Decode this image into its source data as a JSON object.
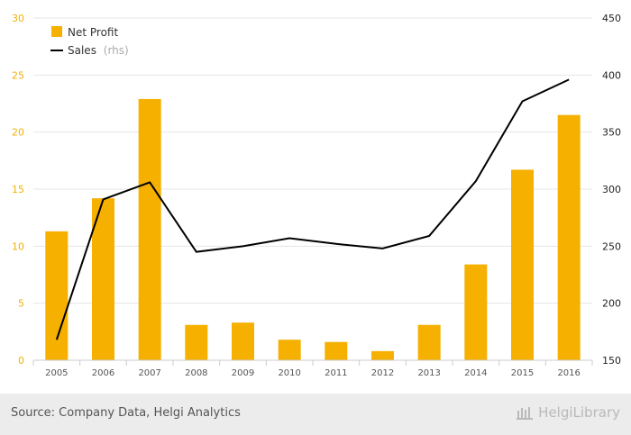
{
  "colors": {
    "bar": "#f5b000",
    "line": "#000000",
    "grid": "#e6e6e6",
    "left_tick": "#f5b000",
    "right_tick": "#222222",
    "x_tick": "#555555",
    "legend_text": "#333333",
    "legend_muted": "#aaaaaa"
  },
  "legend": {
    "net_profit_label": "Net Profit",
    "sales_label": "Sales",
    "sales_suffix": "(rhs)"
  },
  "footer": {
    "source": "Source: Company Data, Helgi Analytics",
    "brand": "HelgiLibrary"
  },
  "chart_data": {
    "type": "bar",
    "categories": [
      "2005",
      "2006",
      "2007",
      "2008",
      "2009",
      "2010",
      "2011",
      "2012",
      "2013",
      "2014",
      "2015",
      "2016"
    ],
    "series": [
      {
        "name": "Net Profit",
        "type": "bar",
        "axis": "left",
        "values": [
          11.3,
          14.2,
          22.9,
          3.1,
          3.3,
          1.8,
          1.6,
          0.8,
          3.1,
          8.4,
          16.7,
          21.5
        ]
      },
      {
        "name": "Sales (rhs)",
        "type": "line",
        "axis": "right",
        "values": [
          168,
          291,
          306,
          245,
          250,
          257,
          252,
          248,
          259,
          307,
          377,
          396
        ]
      }
    ],
    "y_left": {
      "lim": [
        0,
        30
      ],
      "ticks": [
        0,
        5,
        10,
        15,
        20,
        25,
        30
      ]
    },
    "y_right": {
      "lim": [
        150,
        450
      ],
      "ticks": [
        150,
        200,
        250,
        300,
        350,
        400,
        450
      ]
    },
    "grid": true,
    "legend_position": "top-left",
    "title": "",
    "xlabel": "",
    "ylabel": ""
  }
}
